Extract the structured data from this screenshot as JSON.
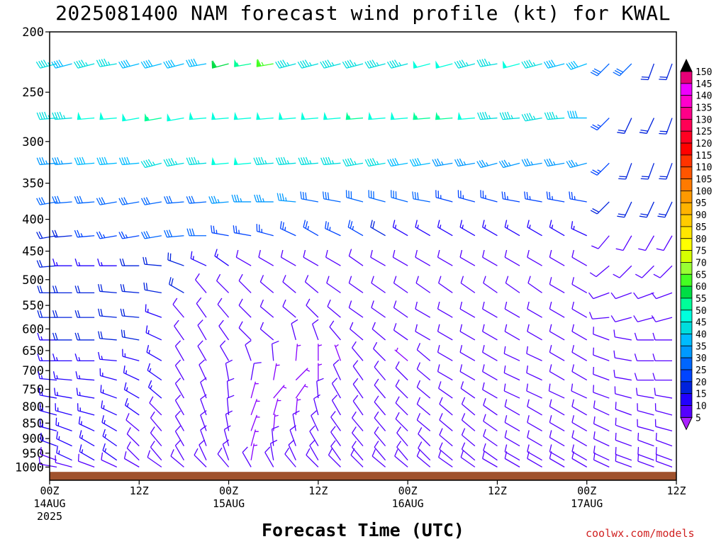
{
  "title": "2025081400 NAM forecast wind profile (kt) for KWAL",
  "credit": "coolwx.com/models",
  "chart_data": {
    "type": "wind-barb-profile",
    "title": "2025081400 NAM forecast wind profile (kt) for KWAL",
    "xlabel": "Forecast Time (UTC)",
    "ylabel": "",
    "units": "kt",
    "y_levels": [
      200,
      250,
      300,
      350,
      400,
      450,
      500,
      550,
      600,
      650,
      700,
      750,
      800,
      850,
      900,
      950,
      1000
    ],
    "ylim": [
      1050,
      200
    ],
    "y_scale": "log",
    "xlim_hours": [
      0,
      84
    ],
    "x_ticks": [
      {
        "hour": 0,
        "lines": [
          "00Z",
          "14AUG",
          "2025"
        ]
      },
      {
        "hour": 12,
        "lines": [
          "12Z"
        ]
      },
      {
        "hour": 24,
        "lines": [
          "00Z",
          "15AUG"
        ]
      },
      {
        "hour": 36,
        "lines": [
          "12Z"
        ]
      },
      {
        "hour": 48,
        "lines": [
          "00Z",
          "16AUG"
        ]
      },
      {
        "hour": 60,
        "lines": [
          "12Z"
        ]
      },
      {
        "hour": 72,
        "lines": [
          "00Z",
          "17AUG"
        ]
      },
      {
        "hour": 84,
        "lines": [
          "12Z"
        ]
      }
    ],
    "barb_hours": [
      0,
      3,
      6,
      9,
      12,
      15,
      18,
      21,
      24,
      27,
      30,
      33,
      36,
      39,
      42,
      45,
      48,
      51,
      54,
      57,
      60,
      63,
      66,
      69,
      72,
      75,
      78,
      81,
      84
    ],
    "barb_levels": [
      225,
      275,
      325,
      375,
      425,
      475,
      525,
      575,
      625,
      675,
      725,
      775,
      825,
      875,
      925,
      975,
      1000
    ],
    "wind_speed_kt": [
      [
        45,
        40,
        45,
        45,
        40,
        40,
        40,
        40,
        60,
        55,
        65,
        45,
        45,
        45,
        45,
        45,
        45,
        50,
        50,
        45,
        45,
        50,
        45,
        40,
        40,
        30,
        30,
        20,
        20
      ],
      [
        45,
        45,
        50,
        50,
        50,
        55,
        50,
        50,
        50,
        50,
        50,
        50,
        50,
        50,
        55,
        50,
        50,
        55,
        55,
        50,
        45,
        45,
        45,
        45,
        40,
        25,
        20,
        20,
        20
      ],
      [
        35,
        35,
        40,
        40,
        40,
        45,
        45,
        45,
        50,
        50,
        45,
        45,
        45,
        45,
        45,
        45,
        40,
        40,
        35,
        35,
        35,
        35,
        35,
        35,
        35,
        25,
        20,
        20,
        20
      ],
      [
        30,
        30,
        30,
        30,
        30,
        30,
        30,
        30,
        35,
        35,
        35,
        35,
        30,
        30,
        30,
        30,
        30,
        30,
        25,
        25,
        25,
        25,
        25,
        25,
        25,
        20,
        20,
        20,
        20
      ],
      [
        20,
        20,
        25,
        25,
        25,
        30,
        30,
        30,
        25,
        25,
        25,
        25,
        25,
        25,
        25,
        20,
        15,
        15,
        15,
        15,
        15,
        15,
        15,
        15,
        15,
        10,
        10,
        10,
        10
      ],
      [
        20,
        15,
        15,
        15,
        20,
        20,
        20,
        15,
        15,
        10,
        10,
        10,
        10,
        10,
        10,
        10,
        10,
        10,
        10,
        10,
        10,
        10,
        10,
        10,
        10,
        10,
        10,
        10,
        10
      ],
      [
        20,
        20,
        20,
        20,
        20,
        20,
        20,
        10,
        10,
        10,
        10,
        10,
        10,
        10,
        10,
        10,
        10,
        10,
        10,
        10,
        10,
        10,
        10,
        10,
        10,
        10,
        10,
        10,
        10
      ],
      [
        20,
        20,
        20,
        20,
        20,
        15,
        10,
        10,
        10,
        10,
        10,
        10,
        10,
        10,
        10,
        10,
        10,
        10,
        10,
        10,
        10,
        10,
        10,
        10,
        10,
        10,
        10,
        10,
        10
      ],
      [
        15,
        20,
        20,
        20,
        20,
        15,
        10,
        10,
        10,
        10,
        10,
        10,
        10,
        10,
        10,
        10,
        10,
        10,
        10,
        10,
        10,
        10,
        10,
        10,
        10,
        10,
        10,
        10,
        10
      ],
      [
        15,
        15,
        15,
        15,
        15,
        15,
        10,
        10,
        10,
        10,
        10,
        5,
        5,
        5,
        10,
        10,
        5,
        10,
        10,
        10,
        10,
        10,
        10,
        10,
        10,
        10,
        10,
        10,
        10
      ],
      [
        15,
        15,
        15,
        15,
        15,
        15,
        10,
        10,
        10,
        10,
        5,
        5,
        5,
        10,
        10,
        10,
        10,
        10,
        10,
        10,
        10,
        10,
        10,
        10,
        10,
        10,
        10,
        10,
        10
      ],
      [
        15,
        15,
        15,
        15,
        15,
        15,
        10,
        10,
        10,
        5,
        5,
        5,
        10,
        10,
        10,
        10,
        10,
        10,
        10,
        10,
        10,
        10,
        10,
        10,
        10,
        10,
        10,
        10,
        10
      ],
      [
        15,
        15,
        15,
        15,
        15,
        10,
        10,
        10,
        10,
        5,
        5,
        5,
        10,
        10,
        10,
        10,
        10,
        10,
        10,
        10,
        10,
        10,
        10,
        10,
        10,
        10,
        10,
        10,
        10
      ],
      [
        15,
        15,
        15,
        15,
        10,
        10,
        10,
        10,
        10,
        5,
        5,
        10,
        10,
        10,
        10,
        10,
        10,
        10,
        10,
        10,
        10,
        10,
        10,
        10,
        10,
        10,
        10,
        10,
        10
      ],
      [
        15,
        15,
        15,
        15,
        10,
        10,
        10,
        10,
        10,
        5,
        10,
        10,
        10,
        10,
        10,
        10,
        10,
        10,
        10,
        10,
        10,
        10,
        10,
        10,
        10,
        10,
        10,
        10,
        10
      ],
      [
        10,
        15,
        15,
        15,
        10,
        10,
        10,
        10,
        10,
        5,
        10,
        10,
        10,
        10,
        10,
        10,
        10,
        10,
        10,
        10,
        10,
        10,
        10,
        10,
        10,
        10,
        10,
        10,
        10
      ],
      [
        10,
        10,
        10,
        10,
        10,
        10,
        10,
        10,
        10,
        10,
        10,
        10,
        10,
        10,
        10,
        10,
        10,
        10,
        10,
        10,
        10,
        10,
        10,
        10,
        10,
        10,
        10,
        10,
        10
      ]
    ],
    "wind_dir_deg": [
      [
        255,
        255,
        255,
        260,
        255,
        255,
        255,
        260,
        255,
        260,
        260,
        255,
        255,
        255,
        255,
        255,
        255,
        255,
        255,
        255,
        260,
        255,
        255,
        255,
        250,
        225,
        225,
        200,
        200
      ],
      [
        265,
        265,
        265,
        265,
        260,
        260,
        260,
        265,
        265,
        265,
        265,
        265,
        265,
        265,
        265,
        265,
        265,
        265,
        265,
        265,
        265,
        265,
        260,
        265,
        270,
        225,
        205,
        205,
        200
      ],
      [
        265,
        265,
        265,
        265,
        265,
        255,
        260,
        265,
        265,
        265,
        265,
        265,
        265,
        265,
        260,
        260,
        260,
        260,
        260,
        260,
        255,
        255,
        260,
        260,
        255,
        225,
        200,
        200,
        200
      ],
      [
        260,
        265,
        265,
        260,
        260,
        260,
        265,
        265,
        265,
        270,
        270,
        275,
        280,
        280,
        285,
        285,
        285,
        280,
        285,
        285,
        285,
        280,
        280,
        280,
        280,
        225,
        205,
        205,
        205
      ],
      [
        260,
        265,
        265,
        260,
        260,
        260,
        265,
        270,
        280,
        280,
        285,
        295,
        300,
        295,
        300,
        300,
        300,
        300,
        300,
        300,
        300,
        300,
        300,
        300,
        295,
        220,
        210,
        210,
        210
      ],
      [
        265,
        270,
        270,
        270,
        270,
        275,
        290,
        295,
        305,
        300,
        300,
        300,
        300,
        300,
        305,
        300,
        300,
        300,
        300,
        300,
        300,
        300,
        300,
        300,
        300,
        230,
        225,
        225,
        225
      ],
      [
        270,
        270,
        270,
        275,
        275,
        280,
        300,
        320,
        315,
        315,
        310,
        310,
        310,
        305,
        305,
        305,
        305,
        305,
        305,
        305,
        305,
        305,
        305,
        300,
        300,
        250,
        250,
        250,
        250
      ],
      [
        270,
        270,
        270,
        275,
        275,
        290,
        320,
        325,
        320,
        315,
        310,
        310,
        315,
        310,
        305,
        305,
        305,
        300,
        300,
        300,
        300,
        300,
        300,
        300,
        300,
        265,
        255,
        255,
        255
      ],
      [
        270,
        270,
        270,
        275,
        280,
        295,
        325,
        330,
        325,
        315,
        310,
        345,
        340,
        320,
        310,
        310,
        305,
        300,
        300,
        300,
        300,
        300,
        300,
        300,
        300,
        290,
        280,
        270,
        270
      ],
      [
        270,
        270,
        270,
        275,
        285,
        300,
        330,
        330,
        330,
        340,
        355,
        5,
        0,
        340,
        320,
        315,
        310,
        310,
        300,
        300,
        300,
        295,
        295,
        300,
        300,
        290,
        280,
        270,
        270
      ],
      [
        275,
        275,
        275,
        285,
        295,
        305,
        330,
        335,
        350,
        10,
        10,
        45,
        0,
        335,
        325,
        320,
        315,
        310,
        300,
        300,
        300,
        295,
        295,
        300,
        300,
        290,
        280,
        270,
        270
      ],
      [
        280,
        280,
        280,
        290,
        300,
        310,
        330,
        340,
        355,
        15,
        40,
        35,
        355,
        330,
        325,
        320,
        315,
        310,
        305,
        305,
        300,
        295,
        295,
        295,
        295,
        290,
        285,
        280,
        280
      ],
      [
        285,
        285,
        285,
        295,
        305,
        315,
        330,
        340,
        355,
        20,
        15,
        5,
        345,
        330,
        325,
        320,
        315,
        310,
        310,
        310,
        305,
        300,
        300,
        300,
        300,
        295,
        290,
        285,
        285
      ],
      [
        285,
        290,
        295,
        300,
        310,
        320,
        330,
        340,
        350,
        20,
        5,
        350,
        335,
        325,
        320,
        320,
        315,
        310,
        310,
        310,
        305,
        300,
        300,
        300,
        300,
        295,
        290,
        285,
        285
      ],
      [
        290,
        295,
        300,
        305,
        315,
        320,
        330,
        340,
        345,
        15,
        355,
        340,
        330,
        325,
        320,
        320,
        320,
        315,
        310,
        310,
        305,
        300,
        300,
        300,
        300,
        295,
        290,
        290,
        290
      ],
      [
        290,
        295,
        300,
        305,
        315,
        320,
        330,
        335,
        340,
        10,
        350,
        335,
        330,
        325,
        320,
        320,
        320,
        315,
        310,
        310,
        305,
        300,
        300,
        300,
        300,
        295,
        290,
        290,
        290
      ],
      [
        280,
        285,
        290,
        295,
        300,
        305,
        310,
        315,
        320,
        330,
        330,
        320,
        315,
        315,
        315,
        310,
        310,
        310,
        305,
        305,
        300,
        300,
        300,
        300,
        300,
        295,
        290,
        290,
        290
      ]
    ],
    "colorbar": {
      "labels": [
        150,
        145,
        140,
        135,
        130,
        125,
        120,
        115,
        110,
        105,
        100,
        95,
        90,
        85,
        80,
        75,
        70,
        65,
        60,
        55,
        50,
        45,
        40,
        35,
        30,
        25,
        20,
        15,
        10,
        5
      ],
      "colors": [
        "#e60077",
        "#ee00ff",
        "#ff00cc",
        "#ff0088",
        "#ff0055",
        "#ff0022",
        "#ff0000",
        "#ff3300",
        "#ff5500",
        "#ff7a00",
        "#ff9900",
        "#ffb300",
        "#ffcc00",
        "#ffe600",
        "#ffff00",
        "#d6ff00",
        "#99ff33",
        "#44ff22",
        "#00dd44",
        "#00ff99",
        "#00ffdd",
        "#00dddd",
        "#00bbff",
        "#0099ff",
        "#0066ff",
        "#0044ff",
        "#0022dd",
        "#2200ff",
        "#5500ff",
        "#8800ff"
      ],
      "top_cap_color": "#000000",
      "bottom_cap_color": "#aa22ff"
    },
    "ground_color": "#a0522d",
    "legend_position": "right"
  }
}
